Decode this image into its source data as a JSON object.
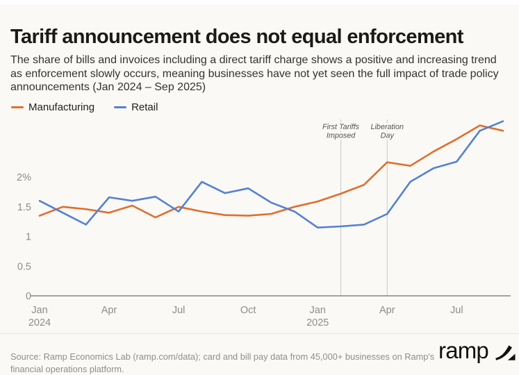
{
  "header": {
    "title": "Tariff announcement does not equal enforcement",
    "subtitle": "The share of bills and invoices including a direct tariff charge shows a positive and increasing trend as enforcement slowly occurs, meaning businesses have not yet seen the full impact of trade policy announcements (Jan 2024 – Sep 2025)"
  },
  "legend": {
    "items": [
      {
        "label": "Manufacturing",
        "color": "#e06e2c"
      },
      {
        "label": "Retail",
        "color": "#5480d6"
      }
    ]
  },
  "chart_data": {
    "type": "line",
    "title": "Tariff announcement does not equal enforcement",
    "unit": "%",
    "x": [
      "Jan 2024",
      "Feb 2024",
      "Mar 2024",
      "Apr 2024",
      "May 2024",
      "Jun 2024",
      "Jul 2024",
      "Aug 2024",
      "Sep 2024",
      "Oct 2024",
      "Nov 2024",
      "Dec 2024",
      "Jan 2025",
      "Feb 2025",
      "Mar 2025",
      "Apr 2025",
      "May 2025",
      "Jun 2025",
      "Jul 2025",
      "Aug 2025",
      "Sep 2025"
    ],
    "series": [
      {
        "name": "Manufacturing",
        "color": "#e06e2c",
        "values": [
          1.35,
          1.5,
          1.46,
          1.4,
          1.52,
          1.32,
          1.5,
          1.42,
          1.36,
          1.35,
          1.38,
          1.5,
          1.59,
          1.72,
          1.87,
          2.25,
          2.19,
          2.43,
          2.64,
          2.87,
          2.78
        ]
      },
      {
        "name": "Retail",
        "color": "#5480d6",
        "values": [
          1.6,
          1.4,
          1.2,
          1.66,
          1.6,
          1.67,
          1.42,
          1.92,
          1.73,
          1.81,
          1.57,
          1.42,
          1.15,
          1.17,
          1.2,
          1.38,
          1.92,
          2.15,
          2.26,
          2.78,
          2.94
        ]
      }
    ],
    "yticks": [
      {
        "v": 0,
        "label": "0"
      },
      {
        "v": 0.5,
        "label": "0.5"
      },
      {
        "v": 1,
        "label": "1"
      },
      {
        "v": 1.5,
        "label": "1.5"
      },
      {
        "v": 2,
        "label": "2%"
      }
    ],
    "xticks": [
      {
        "i": 0,
        "label": "Jan",
        "year": "2024"
      },
      {
        "i": 3,
        "label": "Apr"
      },
      {
        "i": 6,
        "label": "Jul"
      },
      {
        "i": 9,
        "label": "Oct"
      },
      {
        "i": 12,
        "label": "Jan",
        "year": "2025"
      },
      {
        "i": 15,
        "label": "Apr"
      },
      {
        "i": 18,
        "label": "Jul"
      }
    ],
    "annotations": [
      {
        "x_index": 13,
        "lines": [
          "First Tariffs",
          "Imposed"
        ]
      },
      {
        "x_index": 15,
        "lines": [
          "Liberation",
          "Day"
        ]
      }
    ],
    "ylim": [
      0,
      3
    ],
    "grid": "none",
    "legend_position": "top-left"
  },
  "footer": {
    "source": "Source: Ramp Economics Lab (ramp.com/data); card and bill pay data from 45,000+ businesses on Ramp's financial operations platform.",
    "logo_text": "ramp",
    "logo_icon": "ramp-swoosh-icon"
  },
  "style": {
    "background": "#faf9f6",
    "axis_line_color": "#a3a19d",
    "tick_label_color": "#8e8c88",
    "annotation_line_color": "#c9c7c3",
    "annotation_text_color": "#55534f"
  }
}
